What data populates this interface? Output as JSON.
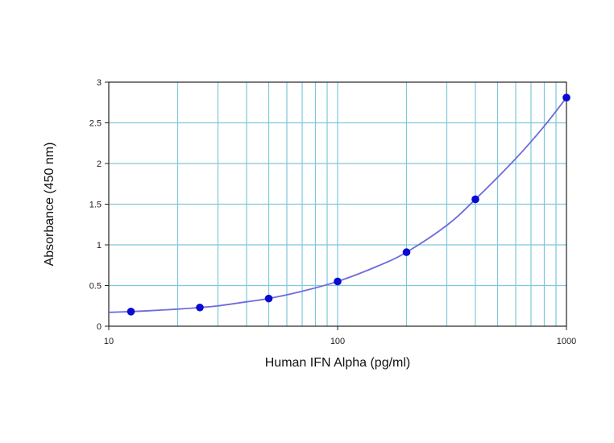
{
  "chart_data": {
    "type": "scatter",
    "title": "",
    "xlabel": "Human IFN Alpha (pg/ml)",
    "ylabel": "Absorbance (450 nm)",
    "xscale": "log",
    "xlim": [
      10,
      1000
    ],
    "ylim": [
      0,
      3
    ],
    "x_ticks": [
      10,
      100,
      1000
    ],
    "x_tick_labels": [
      "10",
      "100",
      "1000"
    ],
    "y_ticks": [
      0,
      0.5,
      1,
      1.5,
      2,
      2.5,
      3
    ],
    "y_tick_labels": [
      "0",
      "0.5",
      "1",
      "1.5",
      "2",
      "2.5",
      "3"
    ],
    "grid": true,
    "legend": "none",
    "series": [
      {
        "x": [
          12.5,
          25,
          50,
          100,
          200,
          400,
          1000
        ],
        "y": [
          0.18,
          0.23,
          0.34,
          0.55,
          0.91,
          1.56,
          2.81
        ]
      }
    ],
    "fit_curve": {
      "x": [
        10,
        12.5,
        15,
        20,
        25,
        30,
        40,
        50,
        70,
        100,
        150,
        200,
        300,
        400,
        600,
        800,
        1000
      ],
      "y": [
        0.17,
        0.18,
        0.19,
        0.21,
        0.23,
        0.25,
        0.3,
        0.34,
        0.43,
        0.55,
        0.74,
        0.91,
        1.24,
        1.56,
        2.06,
        2.46,
        2.81
      ]
    },
    "colors": {
      "grid": "#7ec8d8",
      "axis": "#222222",
      "curve": "#6c6cdc",
      "points": "#0a0ad2"
    }
  }
}
